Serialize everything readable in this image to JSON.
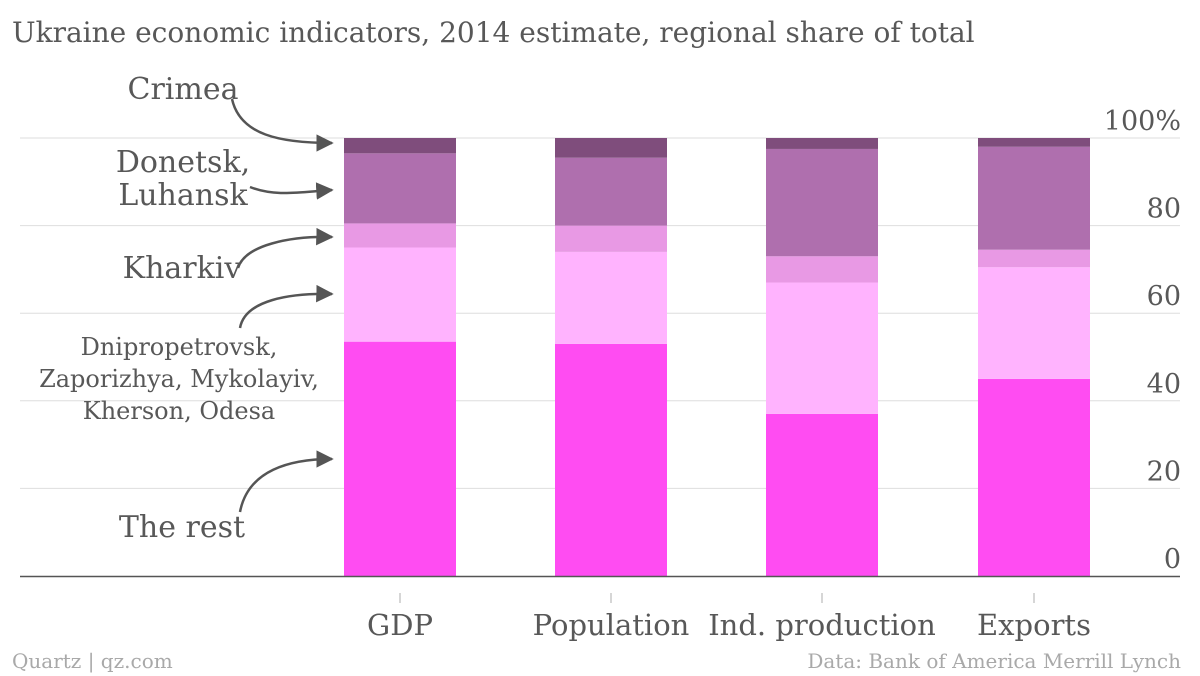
{
  "chart_data": {
    "type": "bar",
    "stacked": true,
    "title": "Ukraine economic indicators, 2014 estimate, regional share of total",
    "categories": [
      "GDP",
      "Population",
      "Ind. production",
      "Exports"
    ],
    "series": [
      {
        "name": "The rest",
        "color": "#ff4cf2",
        "values": [
          53.5,
          53,
          37,
          45
        ]
      },
      {
        "name": "Dnipropetrovsk, Zaporizhya, Mykolayiv, Kherson, Odesa",
        "color": "#ffb3fe",
        "values": [
          21.5,
          21,
          30,
          25.5
        ]
      },
      {
        "name": "Kharkiv",
        "color": "#e899e4",
        "values": [
          5.5,
          6,
          6,
          4
        ]
      },
      {
        "name": "Donetsk, Luhansk",
        "color": "#af6fae",
        "values": [
          16,
          15.5,
          24.5,
          23.5
        ]
      },
      {
        "name": "Crimea",
        "color": "#7f4d7c",
        "values": [
          3.5,
          4.5,
          2.5,
          2
        ]
      }
    ],
    "ylim": [
      0,
      100
    ],
    "yticks": [
      "0",
      "20",
      "40",
      "60",
      "80",
      "100%"
    ],
    "ytick_values": [
      0,
      20,
      40,
      60,
      80,
      100
    ],
    "grid": true,
    "legend_placement": "left",
    "xlabel": "",
    "ylabel": ""
  },
  "footer": {
    "left": "Quartz | qz.com",
    "right": "Data: Bank of America Merrill Lynch"
  },
  "colors": {
    "text": "#585858",
    "footer": "#a9a9a9",
    "grid": "#dedede",
    "axis": "#555555"
  }
}
